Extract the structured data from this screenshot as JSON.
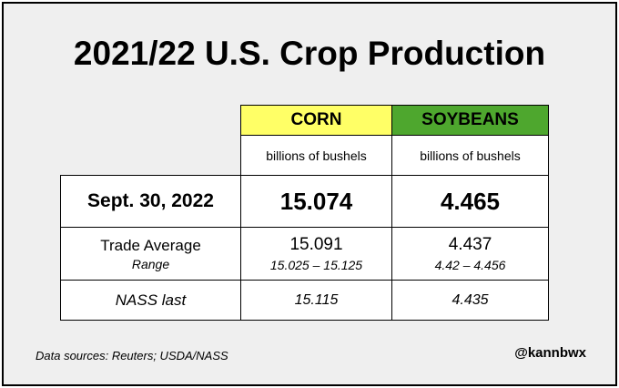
{
  "title": "2021/22 U.S. Crop Production",
  "columns": [
    {
      "name": "CORN",
      "unit": "billions of bushels",
      "color": "#ffff66"
    },
    {
      "name": "SOYBEANS",
      "unit": "billions of bushels",
      "color": "#4ea72e"
    }
  ],
  "rows": {
    "latest": {
      "label": "Sept. 30, 2022",
      "corn": "15.074",
      "soybeans": "4.465"
    },
    "trade": {
      "label": "Trade Average",
      "sublabel": "Range",
      "corn": "15.091",
      "corn_range": "15.025 – 15.125",
      "soybeans": "4.437",
      "soybeans_range": "4.42 – 4.456"
    },
    "nass": {
      "label": "NASS last",
      "corn": "15.115",
      "soybeans": "4.435"
    }
  },
  "footer": {
    "source": "Data sources: Reuters; USDA/NASS",
    "handle": "@kannbwx"
  },
  "chart_data": {
    "type": "table",
    "title": "2021/22 U.S. Crop Production",
    "columns": [
      "",
      "CORN",
      "SOYBEANS"
    ],
    "units": "billions of bushels",
    "rows": [
      {
        "label": "Sept. 30, 2022",
        "values": [
          15.074,
          4.465
        ]
      },
      {
        "label": "Trade Average",
        "values": [
          15.091,
          4.437
        ]
      },
      {
        "label": "Range",
        "values": [
          "15.025 – 15.125",
          "4.42 – 4.456"
        ]
      },
      {
        "label": "NASS last",
        "values": [
          15.115,
          4.435
        ]
      }
    ]
  }
}
